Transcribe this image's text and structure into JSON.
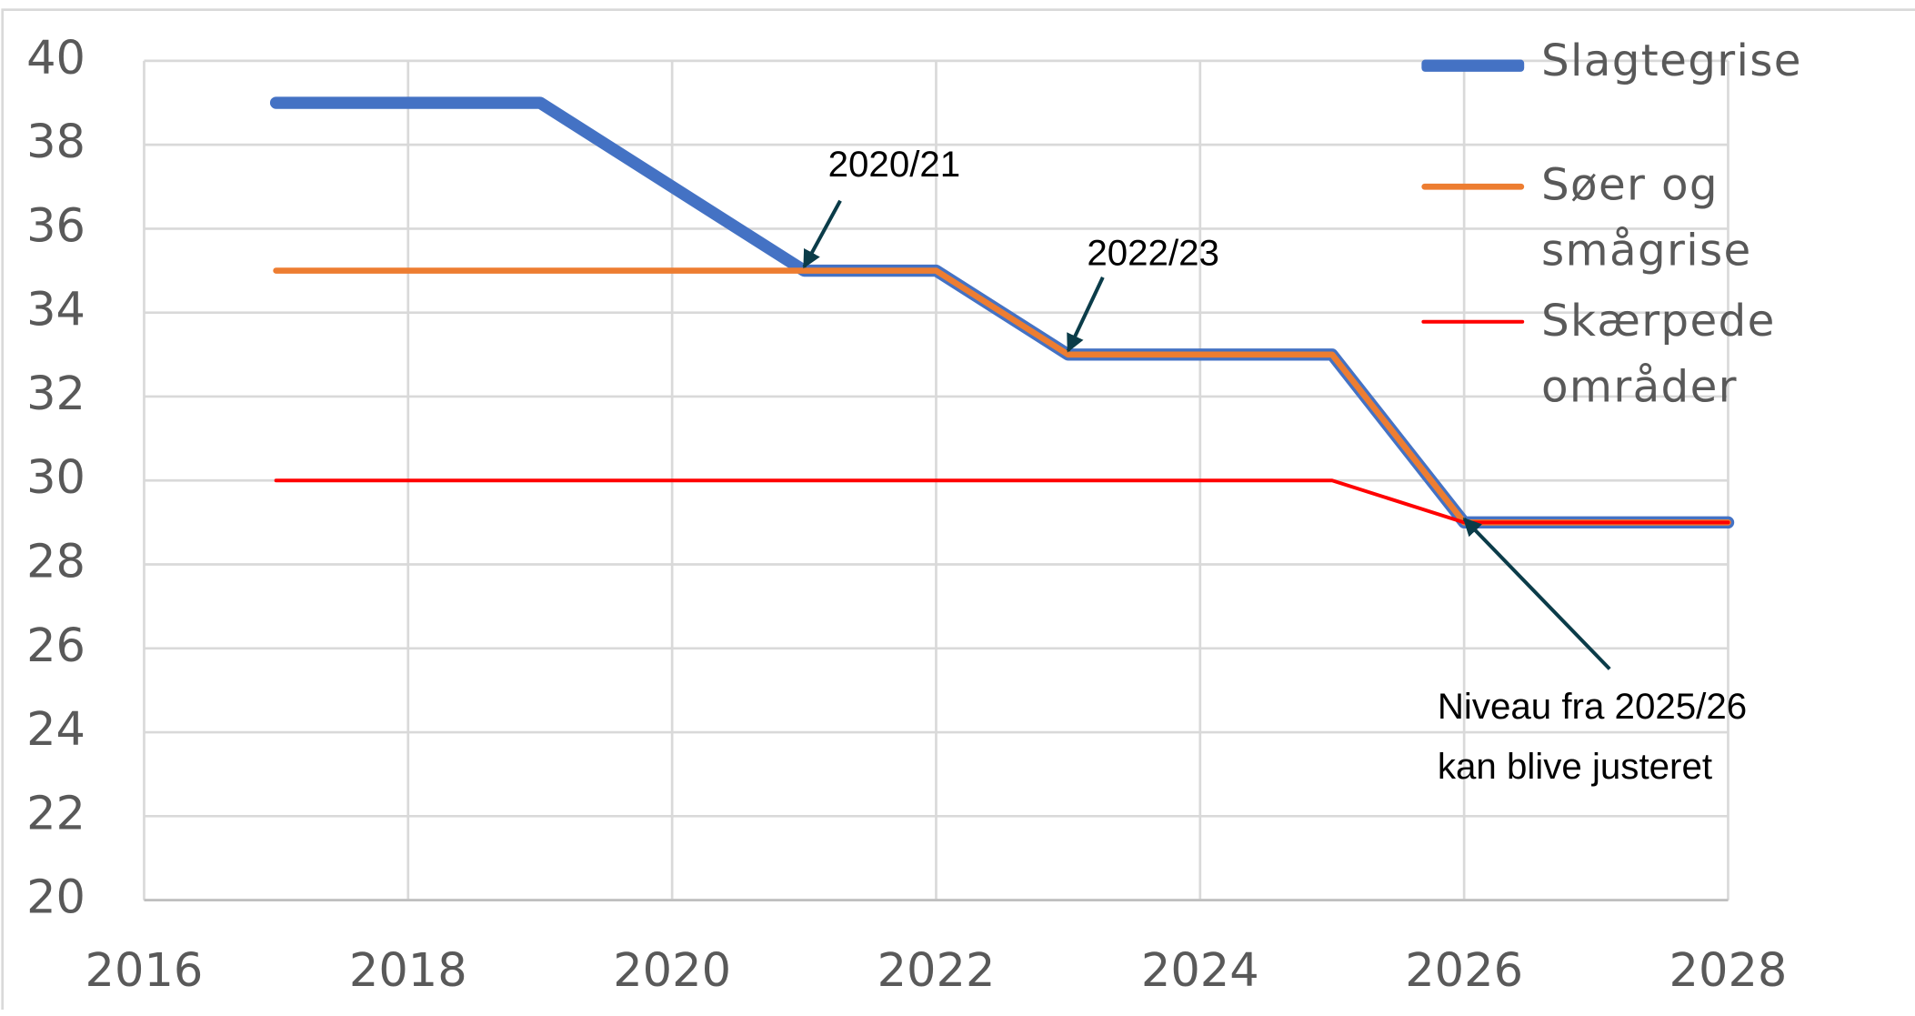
{
  "chart_data": {
    "type": "line",
    "x": [
      2017,
      2019,
      2021,
      2022,
      2023,
      2025,
      2026,
      2028
    ],
    "series": [
      {
        "name": "Slagtegrise",
        "color": "#4472c4",
        "values": [
          39,
          39,
          35,
          35,
          33,
          33,
          29,
          29
        ]
      },
      {
        "name": "Søer og smågrise",
        "color": "#ed7d31",
        "values": [
          35,
          35,
          35,
          35,
          33,
          33,
          29,
          29
        ]
      },
      {
        "name": "Skærpede områder",
        "color": "#ff0000",
        "values": [
          30,
          30,
          30,
          30,
          30,
          30,
          29,
          29
        ]
      }
    ],
    "xlim": [
      2016,
      2028
    ],
    "xticks": [
      2016,
      2018,
      2020,
      2022,
      2024,
      2026,
      2028
    ],
    "ylim": [
      20,
      40
    ],
    "yticks": [
      20,
      22,
      24,
      26,
      28,
      30,
      32,
      34,
      36,
      38,
      40
    ],
    "grid": true,
    "legend": "right",
    "annotations": [
      {
        "text": [
          "2020/21"
        ],
        "x": 2021,
        "y": 35
      },
      {
        "text": [
          "2022/23"
        ],
        "x": 2023,
        "y": 33
      },
      {
        "text": [
          "Niveau fra 2025/26",
          "kan blive justeret"
        ],
        "x": 2026,
        "y": 29
      }
    ]
  }
}
